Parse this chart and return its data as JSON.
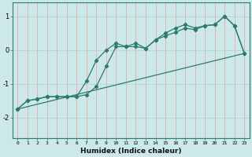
{
  "xlabel": "Humidex (Indice chaleur)",
  "xlim": [
    -0.5,
    23.5
  ],
  "ylim": [
    -2.6,
    1.4
  ],
  "yticks": [
    -2,
    -1,
    0,
    1
  ],
  "xticks": [
    0,
    1,
    2,
    3,
    4,
    5,
    6,
    7,
    8,
    9,
    10,
    11,
    12,
    13,
    14,
    15,
    16,
    17,
    18,
    19,
    20,
    21,
    22,
    23
  ],
  "bg_color": "#cce8e8",
  "line_color": "#2d7a6e",
  "grid_color_v": "#e8a8a8",
  "grid_color_h": "#aed4d4",
  "line1_x": [
    0,
    1,
    2,
    3,
    4,
    5,
    6,
    7,
    8,
    9,
    10,
    11,
    12,
    13,
    14,
    15,
    16,
    17,
    18,
    19,
    20,
    21,
    22,
    23
  ],
  "line1_y": [
    -1.75,
    -1.5,
    -1.45,
    -1.38,
    -1.38,
    -1.38,
    -1.38,
    -0.92,
    -0.3,
    0.0,
    0.2,
    0.1,
    0.2,
    0.05,
    0.3,
    0.5,
    0.65,
    0.75,
    0.65,
    0.72,
    0.75,
    1.0,
    0.72,
    -0.1
  ],
  "line2_x": [
    0,
    1,
    2,
    3,
    4,
    5,
    6,
    7,
    8,
    9,
    10,
    11,
    12,
    13,
    14,
    15,
    16,
    17,
    18,
    19,
    20,
    21,
    22,
    23
  ],
  "line2_y": [
    -1.75,
    -1.5,
    -1.45,
    -1.38,
    -1.38,
    -1.38,
    -1.38,
    -1.32,
    -1.08,
    -0.48,
    0.1,
    0.1,
    0.1,
    0.05,
    0.3,
    0.42,
    0.52,
    0.65,
    0.6,
    0.72,
    0.75,
    1.0,
    0.72,
    -0.1
  ],
  "line3_x": [
    0,
    23
  ],
  "line3_y": [
    -1.75,
    -0.1
  ]
}
